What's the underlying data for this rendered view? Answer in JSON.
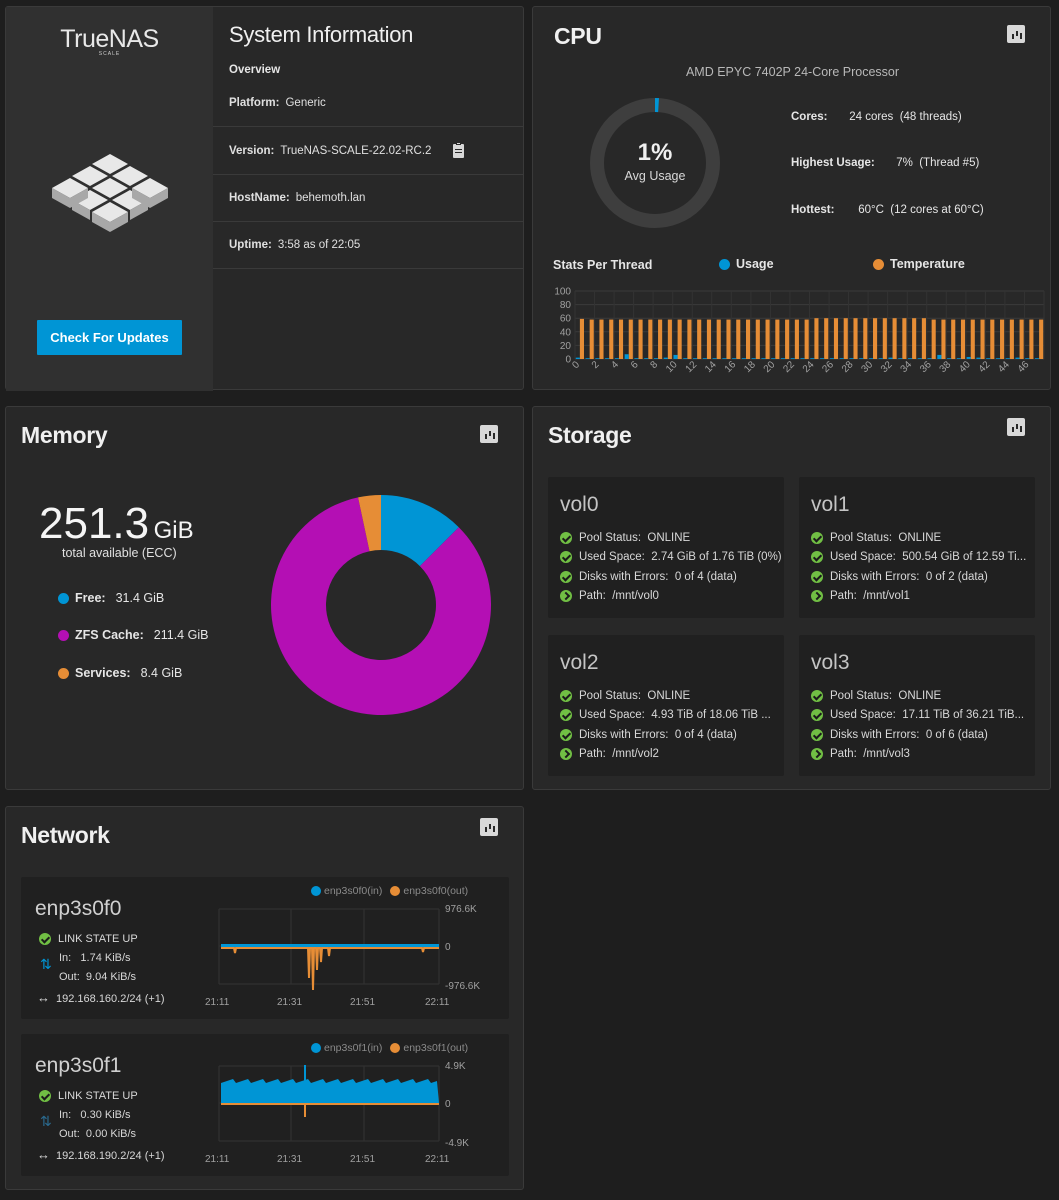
{
  "sysinfo": {
    "brand": "TrueNAS",
    "brand_sub": "SCALE",
    "title": "System Information",
    "overview": "Overview",
    "platform_label": "Platform:",
    "platform": "Generic",
    "version_label": "Version:",
    "version": "TrueNAS-SCALE-22.02-RC.2",
    "hostname_label": "HostName:",
    "hostname": "behemoth.lan",
    "uptime_label": "Uptime:",
    "uptime": "3:58 as of 22:05",
    "check_updates": "Check For Updates",
    "accent": "#0095d5"
  },
  "cpu": {
    "title": "CPU",
    "processor": "AMD EPYC 7402P 24-Core Processor",
    "avg_value": "1%",
    "avg_label": "Avg Usage",
    "avg_fraction": 0.01,
    "cores_label": "Cores:",
    "cores": "24 cores  (48 threads)",
    "highest_label": "Highest Usage:",
    "highest": "7%  (Thread #5)",
    "hottest_label": "Hottest:",
    "hottest": "60°C  (12 cores at 60°C)",
    "stats_label": "Stats Per Thread",
    "usage_legend": "Usage",
    "temp_legend": "Temperature",
    "usage_color": "#0095d5",
    "temp_color": "#e68d36"
  },
  "cpu_chart": {
    "type": "bar",
    "ylim": [
      0,
      100
    ],
    "yticks": [
      "100",
      "80",
      "60",
      "40",
      "20",
      "0"
    ],
    "xticks": [
      "0",
      "2",
      "4",
      "6",
      "8",
      "10",
      "12",
      "14",
      "16",
      "18",
      "20",
      "22",
      "24",
      "26",
      "28",
      "30",
      "32",
      "34",
      "36",
      "38",
      "40",
      "42",
      "44",
      "46"
    ],
    "usage": [
      2,
      0,
      0,
      0,
      0,
      7,
      0,
      0,
      1,
      2,
      6,
      0,
      0,
      0,
      0,
      0,
      0,
      0,
      0,
      0,
      0,
      0,
      0,
      0,
      1,
      0,
      0,
      0,
      0,
      0,
      1,
      0,
      2,
      0,
      0,
      0,
      0,
      6,
      0,
      0,
      3,
      2,
      0,
      1,
      0,
      2,
      0,
      0
    ],
    "temperature": [
      59,
      58,
      58,
      58,
      58,
      58,
      58,
      58,
      58,
      58,
      58,
      58,
      58,
      58,
      58,
      58,
      58,
      58,
      58,
      58,
      58,
      58,
      58,
      58,
      60,
      60,
      60,
      60,
      60,
      60,
      60,
      60,
      60,
      60,
      60,
      60,
      58,
      58,
      58,
      58,
      58,
      58,
      58,
      58,
      58,
      58,
      58,
      58
    ]
  },
  "memory": {
    "title": "Memory",
    "total_value": "251.3",
    "total_unit": "GiB",
    "total_label": "total available (ECC)",
    "items": [
      {
        "label": "Free:",
        "value": "31.4 GiB",
        "color": "#0095d5",
        "amount": 31.4
      },
      {
        "label": "ZFS Cache:",
        "value": "211.4 GiB",
        "color": "#b40fb4",
        "amount": 211.4
      },
      {
        "label": "Services:",
        "value": "8.4 GiB",
        "color": "#e68d36",
        "amount": 8.4
      }
    ]
  },
  "storage": {
    "title": "Storage",
    "pools": [
      {
        "name": "vol0",
        "status": "Pool Status:  ONLINE",
        "used": "Used Space:  2.74 GiB of 1.76 TiB (0%)",
        "errors": "Disks with Errors:  0 of 4 (data)",
        "path": "Path:  /mnt/vol0"
      },
      {
        "name": "vol1",
        "status": "Pool Status:  ONLINE",
        "used": "Used Space:  500.54 GiB of 12.59 Ti...",
        "errors": "Disks with Errors:  0 of 2 (data)",
        "path": "Path:  /mnt/vol1"
      },
      {
        "name": "vol2",
        "status": "Pool Status:  ONLINE",
        "used": "Used Space:  4.93 TiB of 18.06 TiB ...",
        "errors": "Disks with Errors:  0 of 4 (data)",
        "path": "Path:  /mnt/vol2"
      },
      {
        "name": "vol3",
        "status": "Pool Status:  ONLINE",
        "used": "Used Space:  17.11 TiB of 36.21 TiB...",
        "errors": "Disks with Errors:  0 of 6 (data)",
        "path": "Path:  /mnt/vol3"
      }
    ]
  },
  "network": {
    "title": "Network",
    "interfaces": [
      {
        "name": "enp3s0f0",
        "link": "LINK STATE UP",
        "in": "In:   1.74 KiB/s",
        "out": "Out:  9.04 KiB/s",
        "addr": "192.168.160.2/24 (+1)",
        "legend_in": "enp3s0f0(in)",
        "legend_out": "enp3s0f0(out)",
        "ymax": "976.6K",
        "yzero": "0",
        "ymin": "-976.6K",
        "xticks": [
          "21:11",
          "21:31",
          "21:51",
          "22:11"
        ]
      },
      {
        "name": "enp3s0f1",
        "link": "LINK STATE UP",
        "in": "In:   0.30 KiB/s",
        "out": "Out:  0.00 KiB/s",
        "addr": "192.168.190.2/24 (+1)",
        "legend_in": "enp3s0f1(in)",
        "legend_out": "enp3s0f1(out)",
        "ymax": "4.9K",
        "yzero": "0",
        "ymin": "-4.9K",
        "xticks": [
          "21:11",
          "21:31",
          "21:51",
          "22:11"
        ]
      }
    ]
  }
}
